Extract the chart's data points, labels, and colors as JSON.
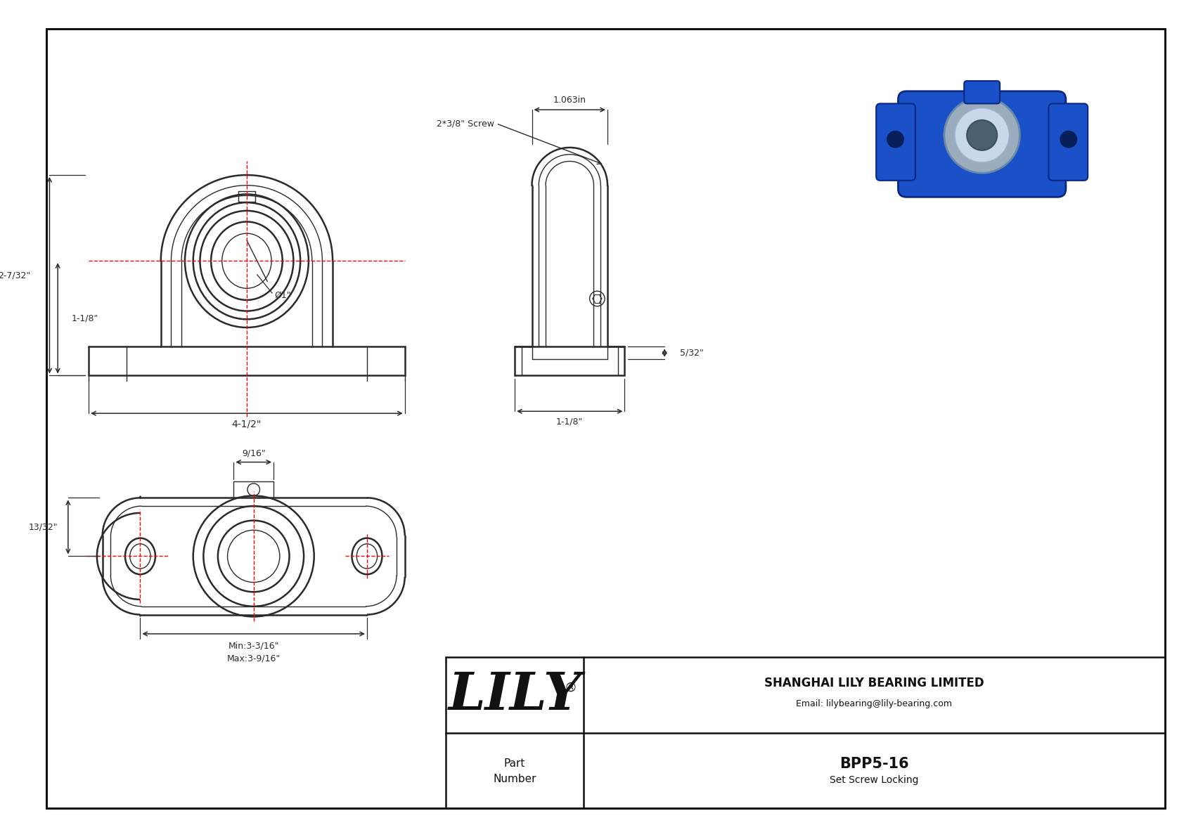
{
  "bg_color": "#ffffff",
  "line_color": "#2a2a2a",
  "dim_color": "#2a2a2a",
  "red_color": "#ff0000",
  "title_block": {
    "company": "SHANGHAI LILY BEARING LIMITED",
    "email": "Email: lilybearing@lily-bearing.com",
    "part_number": "BPP5-16",
    "part_desc": "Set Screw Locking",
    "lily_text": "LILY"
  },
  "dims": {
    "d_2_7_32": "2-7/32\"",
    "d_1_1_8_left": "1-1/8\"",
    "d_4_1_2": "4-1/2\"",
    "d_phi_1": "Ø1\"",
    "d_1_063": "1.063in",
    "d_2_3_8_screw": "2*3/8\" Screw",
    "d_5_32": "5/32\"",
    "d_1_1_8_right": "1-1/8\"",
    "d_9_16": "9/16\"",
    "d_13_32": "13/32\"",
    "d_min": "Min:3-3/16\"",
    "d_max": "Max:3-9/16\""
  }
}
